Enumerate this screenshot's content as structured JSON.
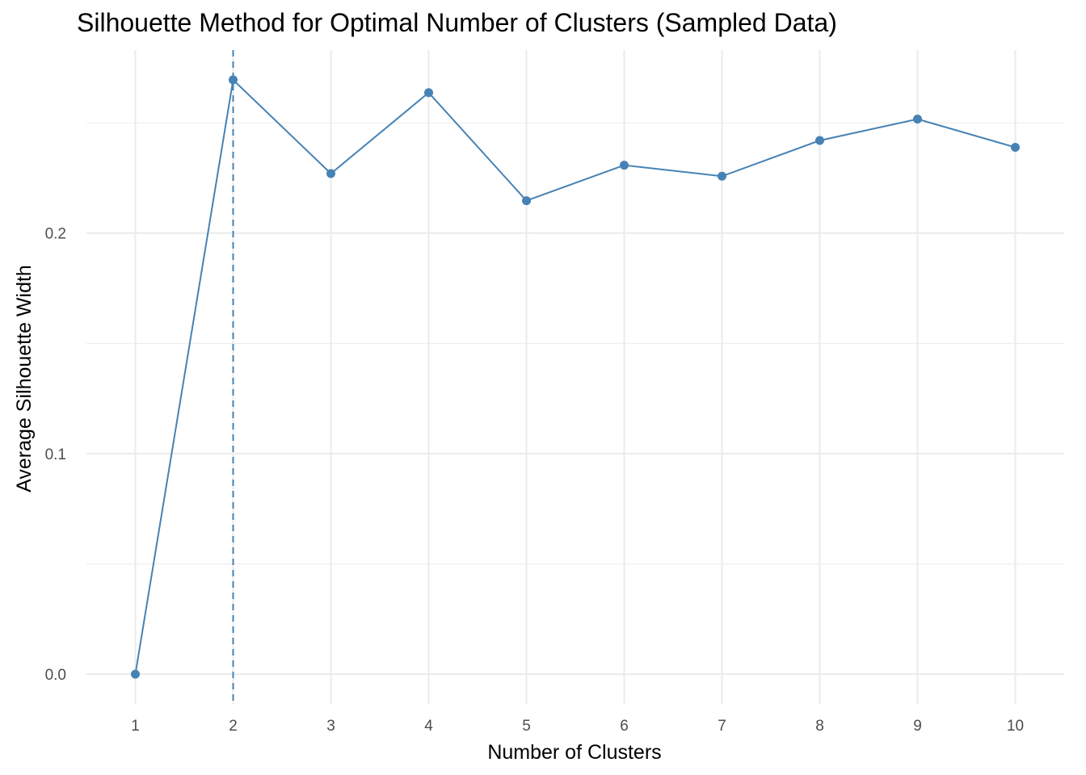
{
  "chart_data": {
    "type": "line",
    "title": "Silhouette Method for Optimal Number of Clusters (Sampled Data)",
    "xlabel": "Number of Clusters",
    "ylabel": "Average Silhouette Width",
    "x": [
      1,
      2,
      3,
      4,
      5,
      6,
      7,
      8,
      9,
      10
    ],
    "series": [
      {
        "values": [
          0.0,
          0.2695,
          0.227,
          0.2637,
          0.2147,
          0.2308,
          0.2258,
          0.242,
          0.2517,
          0.2389
        ]
      }
    ],
    "x_ticks": [
      "1",
      "2",
      "3",
      "4",
      "5",
      "6",
      "7",
      "8",
      "9",
      "10"
    ],
    "y_ticks": [
      0.0,
      0.1,
      0.2
    ],
    "y_tick_labels": [
      "0.0",
      "0.1",
      "0.2"
    ],
    "xlim": [
      0.5,
      10.5
    ],
    "ylim": [
      -0.0135,
      0.283
    ],
    "optimal_k": 2,
    "grid": true,
    "legend": "none",
    "colors": {
      "line": "#4682b4",
      "point": "#4682b4",
      "vline": "#4682b4",
      "grid": "#ebebeb"
    }
  }
}
